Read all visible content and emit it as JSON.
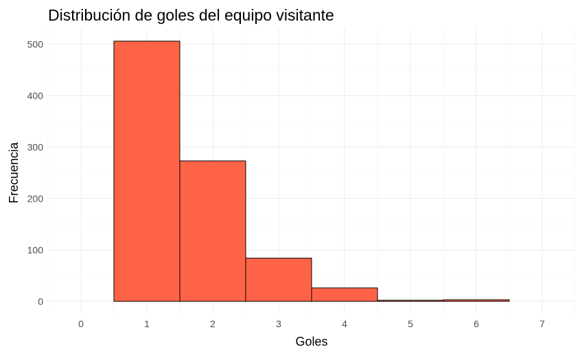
{
  "chart_data": {
    "type": "bar",
    "title": "Distribución de goles del equipo visitante",
    "xlabel": "Goles",
    "ylabel": "Frecuencia",
    "x_ticks": [
      "0",
      "1",
      "2",
      "3",
      "4",
      "5",
      "6",
      "7"
    ],
    "y_ticks": [
      "0",
      "100",
      "200",
      "300",
      "400",
      "500"
    ],
    "xlim": [
      -0.5,
      7.5
    ],
    "ylim": [
      -25,
      530
    ],
    "bars": [
      {
        "x": 1,
        "value": 506
      },
      {
        "x": 2,
        "value": 273
      },
      {
        "x": 3,
        "value": 84
      },
      {
        "x": 4,
        "value": 26
      },
      {
        "x": 5,
        "value": 2
      },
      {
        "x": 6,
        "value": 3
      }
    ],
    "bin_width": 1,
    "fill_color": "#ff6347",
    "border_color": "#000000",
    "grid": true
  }
}
